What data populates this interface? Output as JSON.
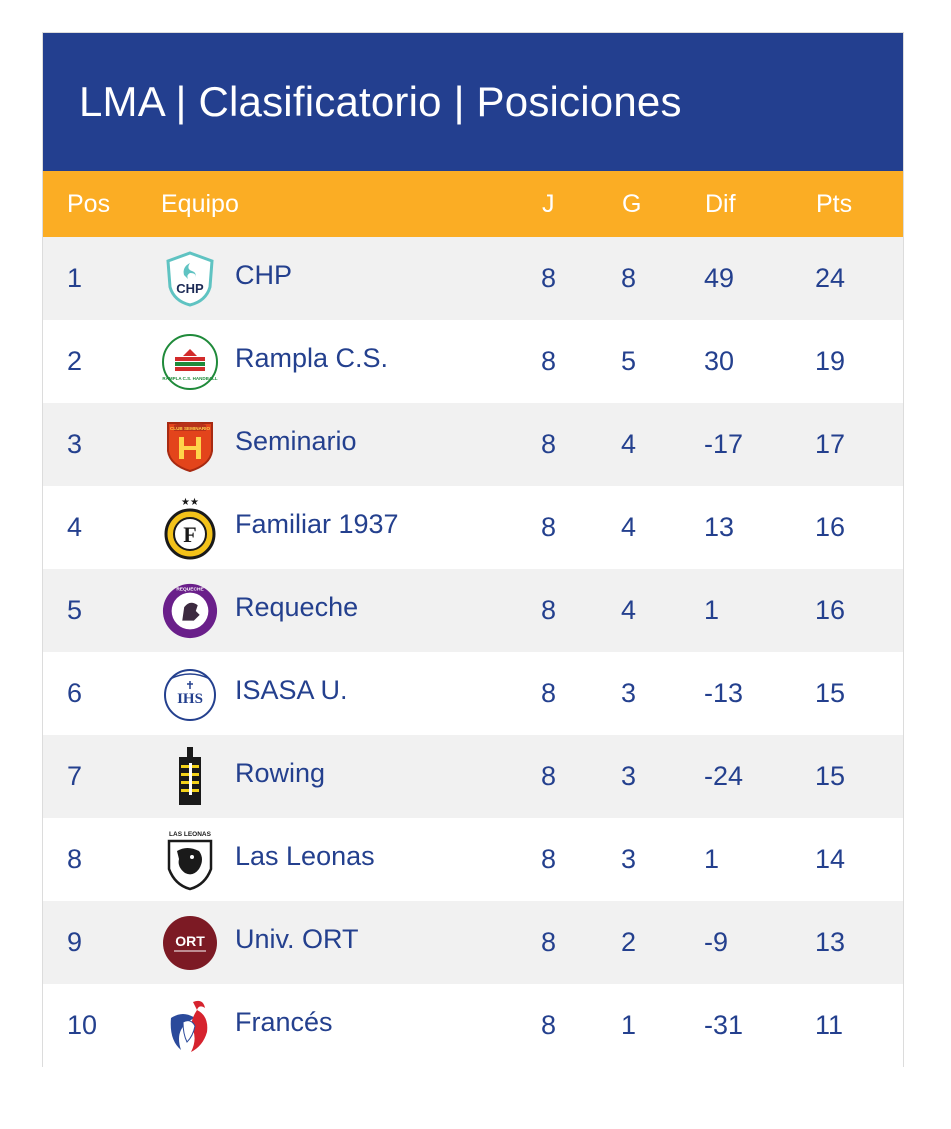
{
  "title": "LMA | Clasificatorio | Posiciones",
  "columns": {
    "pos": "Pos",
    "team": "Equipo",
    "j": "J",
    "g": "G",
    "dif": "Dif",
    "pts": "Pts"
  },
  "colors": {
    "title_bg": "#233f8f",
    "header_bg": "#fbad24",
    "text": "#24408e",
    "row_alt": "#f1f1f1"
  },
  "rows": [
    {
      "pos": "1",
      "team": "CHP",
      "logo": "chp-logo",
      "logo_text": "CHP",
      "j": "8",
      "g": "8",
      "dif": "49",
      "pts": "24"
    },
    {
      "pos": "2",
      "team": "Rampla C.S.",
      "logo": "rampla-logo",
      "logo_text": "RAMPLA C.S. HANDBALL",
      "j": "8",
      "g": "5",
      "dif": "30",
      "pts": "19"
    },
    {
      "pos": "3",
      "team": "Seminario",
      "logo": "seminario-logo",
      "logo_text": "CLUB SEMINARIO",
      "j": "8",
      "g": "4",
      "dif": "-17",
      "pts": "17"
    },
    {
      "pos": "4",
      "team": "Familiar 1937",
      "logo": "familiar-logo",
      "logo_text": "F",
      "j": "8",
      "g": "4",
      "dif": "13",
      "pts": "16"
    },
    {
      "pos": "5",
      "team": "Requeche",
      "logo": "requeche-logo",
      "logo_text": "REQUECHE",
      "j": "8",
      "g": "4",
      "dif": "1",
      "pts": "16"
    },
    {
      "pos": "6",
      "team": "ISASA U.",
      "logo": "isasa-logo",
      "logo_text": "IHS",
      "j": "8",
      "g": "3",
      "dif": "-13",
      "pts": "15"
    },
    {
      "pos": "7",
      "team": "Rowing",
      "logo": "rowing-logo",
      "logo_text": "",
      "j": "8",
      "g": "3",
      "dif": "-24",
      "pts": "15"
    },
    {
      "pos": "8",
      "team": "Las Leonas",
      "logo": "leonas-logo",
      "logo_text": "LAS LEONAS",
      "j": "8",
      "g": "3",
      "dif": "1",
      "pts": "14"
    },
    {
      "pos": "9",
      "team": "Univ. ORT",
      "logo": "ort-logo",
      "logo_text": "ORT",
      "j": "8",
      "g": "2",
      "dif": "-9",
      "pts": "13"
    },
    {
      "pos": "10",
      "team": "Francés",
      "logo": "frances-logo",
      "logo_text": "",
      "j": "8",
      "g": "1",
      "dif": "-31",
      "pts": "11"
    }
  ]
}
